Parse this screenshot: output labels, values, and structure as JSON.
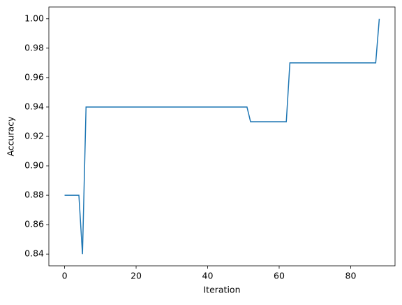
{
  "chart_data": {
    "type": "line",
    "xlabel": "Iteration",
    "ylabel": "Accuracy",
    "x": [
      0,
      1,
      2,
      3,
      4,
      5,
      6,
      7,
      8,
      9,
      10,
      11,
      12,
      13,
      14,
      15,
      16,
      17,
      18,
      19,
      20,
      21,
      22,
      23,
      24,
      25,
      26,
      27,
      28,
      29,
      30,
      31,
      32,
      33,
      34,
      35,
      36,
      37,
      38,
      39,
      40,
      41,
      42,
      43,
      44,
      45,
      46,
      47,
      48,
      49,
      50,
      51,
      52,
      53,
      54,
      55,
      56,
      57,
      58,
      59,
      60,
      61,
      62,
      63,
      64,
      65,
      66,
      67,
      68,
      69,
      70,
      71,
      72,
      73,
      74,
      75,
      76,
      77,
      78,
      79,
      80,
      81,
      82,
      83,
      84,
      85,
      86,
      87,
      88
    ],
    "series": [
      {
        "color": "#1f77b4",
        "values": [
          0.88,
          0.88,
          0.88,
          0.88,
          0.88,
          0.84,
          0.94,
          0.94,
          0.94,
          0.94,
          0.94,
          0.94,
          0.94,
          0.94,
          0.94,
          0.94,
          0.94,
          0.94,
          0.94,
          0.94,
          0.94,
          0.94,
          0.94,
          0.94,
          0.94,
          0.94,
          0.94,
          0.94,
          0.94,
          0.94,
          0.94,
          0.94,
          0.94,
          0.94,
          0.94,
          0.94,
          0.94,
          0.94,
          0.94,
          0.94,
          0.94,
          0.94,
          0.94,
          0.94,
          0.94,
          0.94,
          0.94,
          0.94,
          0.94,
          0.94,
          0.94,
          0.94,
          0.93,
          0.93,
          0.93,
          0.93,
          0.93,
          0.93,
          0.93,
          0.93,
          0.93,
          0.93,
          0.93,
          0.97,
          0.97,
          0.97,
          0.97,
          0.97,
          0.97,
          0.97,
          0.97,
          0.97,
          0.97,
          0.97,
          0.97,
          0.97,
          0.97,
          0.97,
          0.97,
          0.97,
          0.97,
          0.97,
          0.97,
          0.97,
          0.97,
          0.97,
          0.97,
          0.97,
          1.0
        ]
      }
    ],
    "xlim": [
      -4.4,
      92.4
    ],
    "xticks": [
      0,
      20,
      40,
      60,
      80
    ],
    "ylim": [
      0.832,
      1.008
    ],
    "yticks": [
      0.84,
      0.86,
      0.88,
      {
        "value": 0.9,
        "label": "0.90"
      },
      0.92,
      0.94,
      0.96,
      0.98,
      {
        "value": 1.0,
        "label": "1.00"
      }
    ]
  }
}
